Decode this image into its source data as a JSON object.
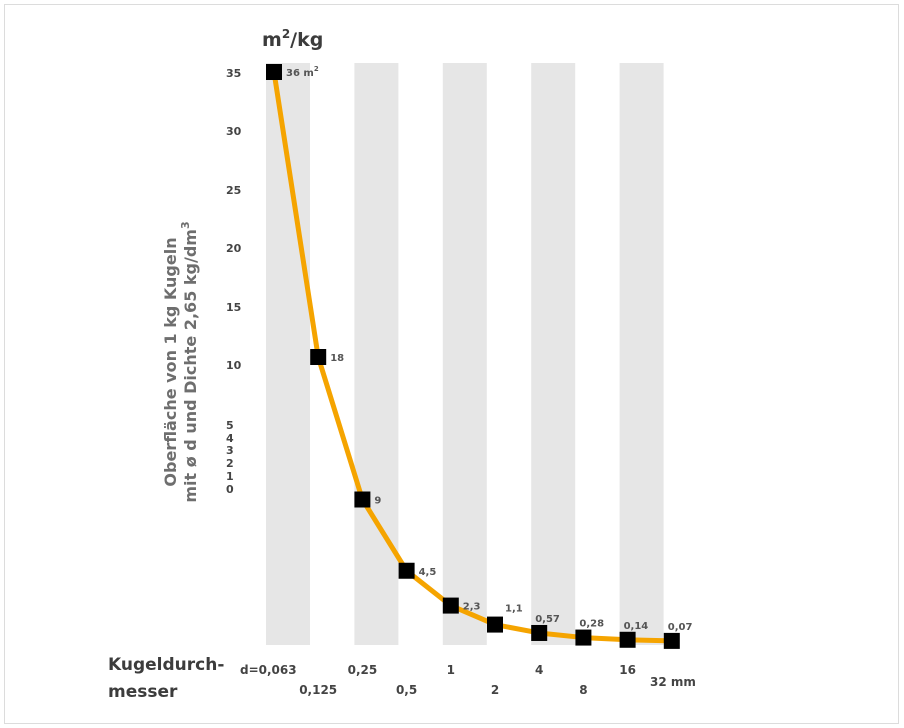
{
  "chart_data": {
    "type": "line",
    "unit_title_base": "m",
    "unit_title_sup": "2",
    "unit_title_rest": "/kg",
    "ylabel_line1": "Oberfläche von 1 kg Kugeln",
    "ylabel_line2": "mit ø d und Dichte 2,65 kg/dm",
    "ylabel_sup": "3",
    "xlabel_line1": "Kugeldurch-",
    "xlabel_line2": "messer",
    "y_ticks": [
      "35",
      "30",
      "25",
      "20",
      "15",
      "10",
      "5",
      "4",
      "3",
      "2",
      "1",
      "0"
    ],
    "x_tick_labels": [
      "d=0,063",
      "0,125",
      "0,25",
      "0,5",
      "1",
      "2",
      "4",
      "8",
      "16",
      "32 mm"
    ],
    "x": [
      0.063,
      0.125,
      0.25,
      0.5,
      1,
      2,
      4,
      8,
      16,
      32
    ],
    "values": [
      36,
      18,
      9,
      4.5,
      2.3,
      1.1,
      0.57,
      0.28,
      0.14,
      0.07
    ],
    "data_labels": [
      "36 m",
      "18",
      "9",
      "4,5",
      "2,3",
      "1,1",
      "0,57",
      "0,28",
      "0,14",
      "0,07"
    ],
    "first_label_sup": "2",
    "colors": {
      "line": "#f5a400",
      "marker": "#000000",
      "band": "#e6e6e6"
    }
  }
}
